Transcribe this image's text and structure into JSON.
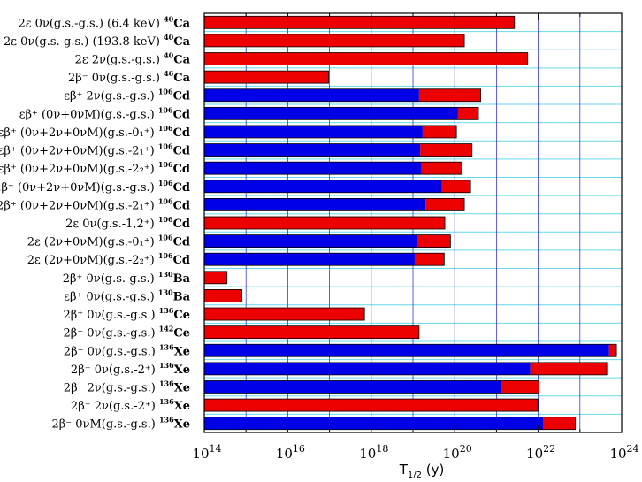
{
  "chart_data": {
    "type": "bar",
    "orientation": "horizontal",
    "x_scale": "log",
    "xlim": [
      100000000000000.0,
      1e+24
    ],
    "xlabel": {
      "main": "T",
      "sub": "1/2",
      "suffix": " (y)"
    },
    "x_ticks": [
      {
        "base": "10",
        "exp": "14",
        "value": 100000000000000.0
      },
      {
        "base": "10",
        "exp": "16",
        "value": 1e+16
      },
      {
        "base": "10",
        "exp": "18",
        "value": 1e+18
      },
      {
        "base": "10",
        "exp": "20",
        "value": 1e+20
      },
      {
        "base": "10",
        "exp": "22",
        "value": 1e+22
      },
      {
        "base": "10",
        "exp": "24",
        "value": 1e+24
      }
    ],
    "grid": {
      "vertical": true,
      "horizontal": true
    },
    "colors": {
      "red": "#ec0000",
      "blue": "#0000e6",
      "grid_v": "#3a3acc",
      "grid_h": "#66d9ee",
      "tick_minor": "#000000"
    },
    "categories": [
      {
        "label": "2ε 0ν(g.s.-g.s.) (6.4 keV)",
        "iso_mass": "40",
        "iso_el": "Ca",
        "blue": null,
        "red": 2.7e+21
      },
      {
        "label": "2ε 0ν(g.s.-g.s.) (193.8 keV)",
        "iso_mass": "40",
        "iso_el": "Ca",
        "blue": null,
        "red": 1.7e+20
      },
      {
        "label": "2ε 2ν(g.s.-g.s.)",
        "iso_mass": "40",
        "iso_el": "Ca",
        "blue": null,
        "red": 5.6e+21
      },
      {
        "label": "2β⁻ 0ν(g.s.-g.s.)",
        "iso_mass": "46",
        "iso_el": "Ca",
        "blue": null,
        "red": 9.5e+16
      },
      {
        "label": "εβ⁺ 2ν(g.s.-g.s.)",
        "iso_mass": "106",
        "iso_el": "Cd",
        "blue": 1.4e+19,
        "red": 4.2e+20
      },
      {
        "label": "εβ⁺ (0ν+0νM)(g.s.-g.s.)",
        "iso_mass": "106",
        "iso_el": "Cd",
        "blue": 1.2e+20,
        "red": 3.7e+20
      },
      {
        "label": "εβ⁺ (0ν+2ν+0νM)(g.s.-0₁⁺)",
        "iso_mass": "106",
        "iso_el": "Cd",
        "blue": 1.7e+19,
        "red": 1.1e+20
      },
      {
        "label": "εβ⁺ (0ν+2ν+0νM)(g.s.-2₁⁺)",
        "iso_mass": "106",
        "iso_el": "Cd",
        "blue": 1.5e+19,
        "red": 2.6e+20
      },
      {
        "label": "εβ⁺ (0ν+2ν+0νM)(g.s.-2₂⁺)",
        "iso_mass": "106",
        "iso_el": "Cd",
        "blue": 1.6e+19,
        "red": 1.5e+20
      },
      {
        "label": "2β⁺ (0ν+2ν+0νM)(g.s.-g.s.)",
        "iso_mass": "106",
        "iso_el": "Cd",
        "blue": 4.9e+19,
        "red": 2.4e+20
      },
      {
        "label": "2β⁺ (0ν+2ν+0νM)(g.s.-2₁⁺)",
        "iso_mass": "106",
        "iso_el": "Cd",
        "blue": 2e+19,
        "red": 1.7e+20
      },
      {
        "label": "2ε 0ν(g.s.-1,2⁺)",
        "iso_mass": "106",
        "iso_el": "Cd",
        "blue": null,
        "red": 5.8e+19
      },
      {
        "label": "2ε (2ν+0νM)(g.s.-0₁⁺)",
        "iso_mass": "106",
        "iso_el": "Cd",
        "blue": 1.3e+19,
        "red": 7.9e+19
      },
      {
        "label": "2ε (2ν+0νM)(g.s.-2₂⁺)",
        "iso_mass": "106",
        "iso_el": "Cd",
        "blue": 1.1e+19,
        "red": 5.6e+19
      },
      {
        "label": "2β⁺ 0ν(g.s.-g.s.)",
        "iso_mass": "130",
        "iso_el": "Ba",
        "blue": null,
        "red": 350000000000000.0
      },
      {
        "label": "εβ⁺ 0ν(g.s.-g.s.)",
        "iso_mass": "130",
        "iso_el": "Ba",
        "blue": null,
        "red": 800000000000000.0
      },
      {
        "label": "2β⁺ 0ν(g.s.-g.s.)",
        "iso_mass": "136",
        "iso_el": "Ce",
        "blue": null,
        "red": 6.9e+17
      },
      {
        "label": "2β⁻ 0ν(g.s.-g.s.)",
        "iso_mass": "142",
        "iso_el": "Ce",
        "blue": null,
        "red": 1.4e+19
      },
      {
        "label": "2β⁻ 0ν(g.s.-g.s.)",
        "iso_mass": "136",
        "iso_el": "Xe",
        "blue": 5e+23,
        "red": 7.5e+23
      },
      {
        "label": "2β⁻ 0ν(g.s.-2⁺)",
        "iso_mass": "136",
        "iso_el": "Xe",
        "blue": 6.5e+21,
        "red": 4.4e+23
      },
      {
        "label": "2β⁻ 2ν(g.s.-g.s.)",
        "iso_mass": "136",
        "iso_el": "Xe",
        "blue": 1.3e+21,
        "red": 1.05e+22
      },
      {
        "label": "2β⁻ 2ν(g.s.-2⁺)",
        "iso_mass": "136",
        "iso_el": "Xe",
        "blue": null,
        "red": 9.8e+21
      },
      {
        "label": "2β⁻ 0νM(g.s.-g.s.)",
        "iso_mass": "136",
        "iso_el": "Xe",
        "blue": 1.3e+22,
        "red": 7.8e+22
      }
    ]
  }
}
